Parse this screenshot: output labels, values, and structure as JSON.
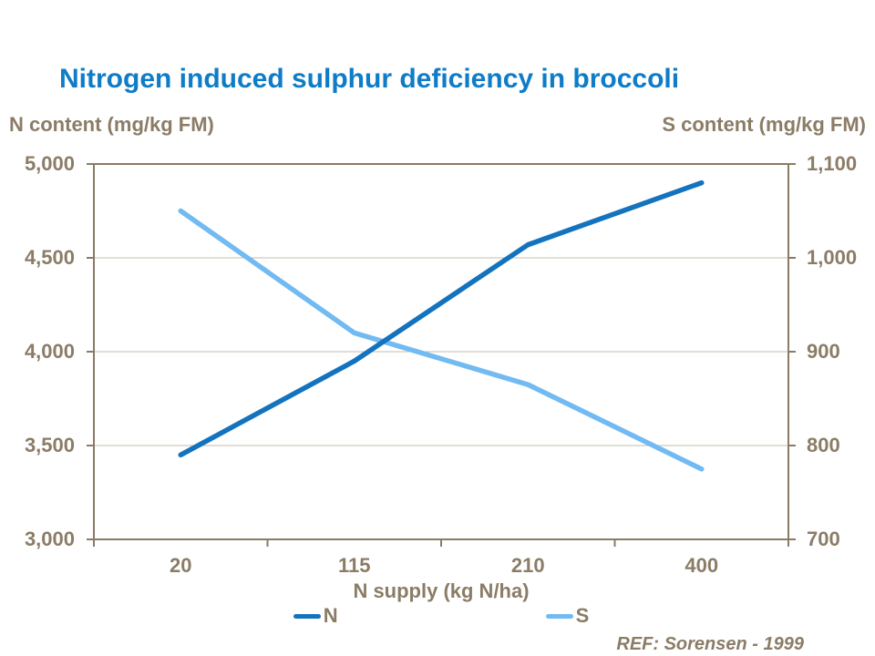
{
  "slide": {
    "ref": "REF: Sorensen - 1999"
  },
  "colors": {
    "title_blue": "#0e7cc7",
    "text_brown": "#8b7c66",
    "axis_border": "#8a7b65",
    "gridline": "#c6bcac",
    "n_line": "#1373be",
    "s_line": "#72baf2"
  },
  "chart_data": {
    "type": "line",
    "title": "Nitrogen induced sulphur deficiency in broccoli",
    "categories": [
      "20",
      "115",
      "210",
      "400"
    ],
    "xlabel": "N supply (kg N/ha)",
    "grid": true,
    "legend_position": "bottom",
    "left_axis": {
      "label": "N content (mg/kg FM)",
      "min": 3000,
      "max": 5000,
      "step": 500,
      "ticks": [
        "5,000",
        "4,500",
        "4,000",
        "3,500",
        "3,000"
      ]
    },
    "right_axis": {
      "label": "S content (mg/kg FM)",
      "min": 700,
      "max": 1100,
      "step": 100,
      "ticks": [
        "1,100",
        "1,000",
        "900",
        "800",
        "700"
      ]
    },
    "series": [
      {
        "name": "N",
        "axis": "left",
        "color": "#1373be",
        "values": [
          3450,
          3950,
          4570,
          4900
        ]
      },
      {
        "name": "S",
        "axis": "right",
        "color": "#72baf2",
        "values": [
          1050,
          920,
          865,
          775
        ]
      }
    ]
  }
}
